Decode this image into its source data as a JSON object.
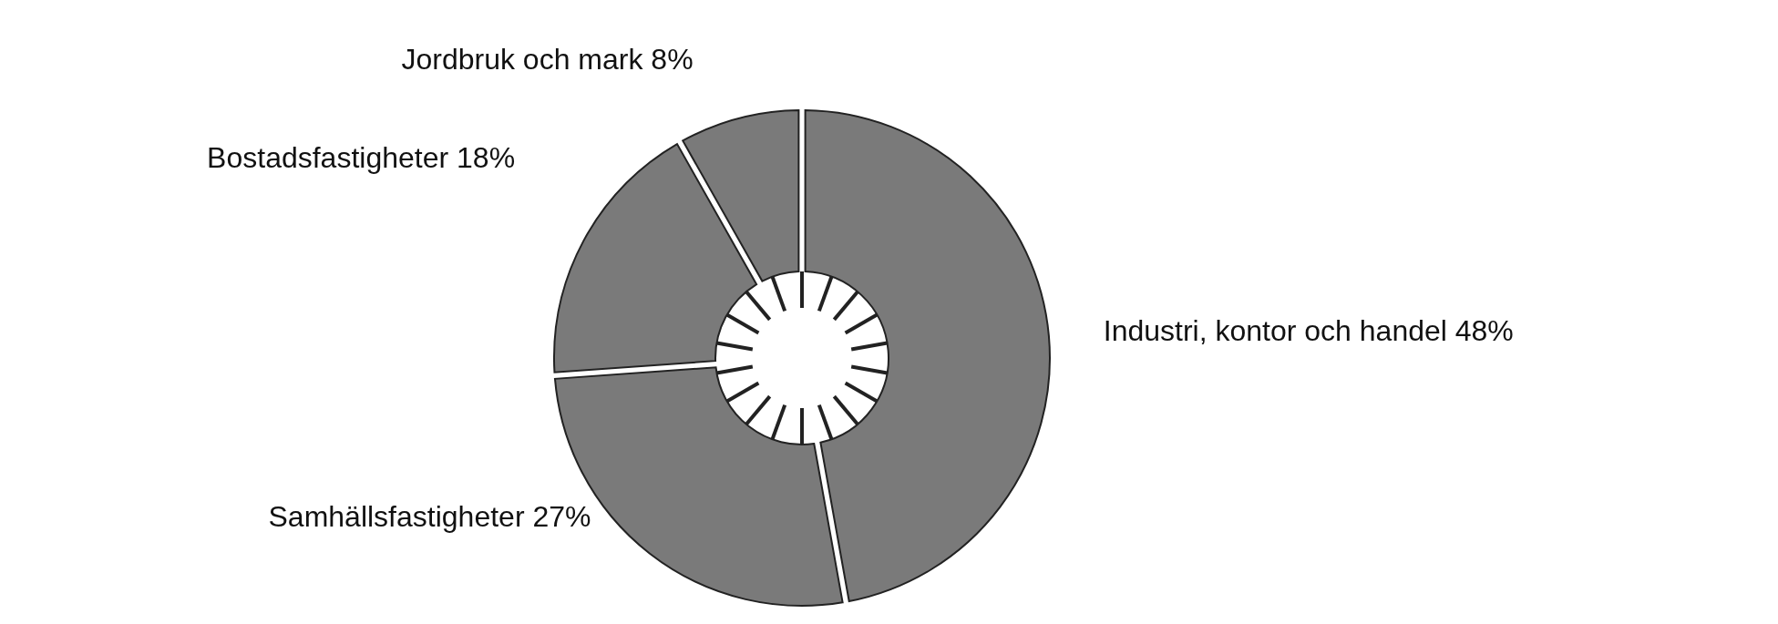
{
  "chart_data": {
    "type": "donut",
    "categories": [
      "Industri, kontor och handel",
      "Samhällsfastigheter",
      "Bostadsfastigheter",
      "Jordbruk och mark"
    ],
    "values": [
      48,
      27,
      18,
      8
    ],
    "value_labels": [
      "48%",
      "27%",
      "18%",
      "8%"
    ],
    "colors": [
      "#7a7a7a",
      "#7a7a7a",
      "#7a7a7a",
      "#7a7a7a"
    ]
  }
}
